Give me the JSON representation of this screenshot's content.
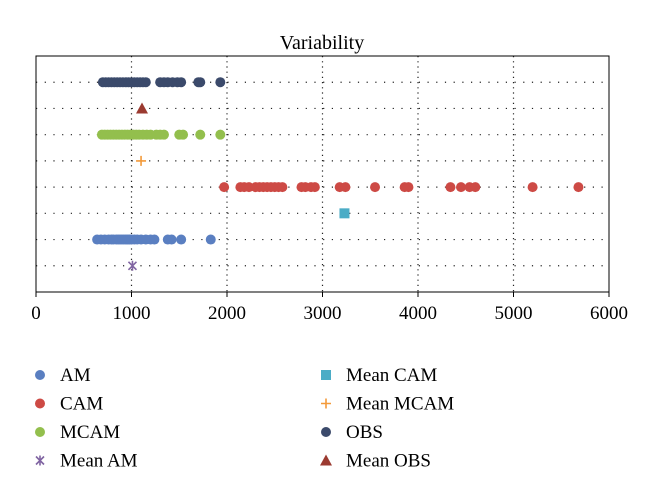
{
  "chart_data": {
    "type": "scatter",
    "title": "Variability",
    "xlabel": "",
    "ylabel": "",
    "xlim": [
      0,
      6000
    ],
    "x_ticks": [
      0,
      1000,
      2000,
      3000,
      4000,
      5000,
      6000
    ],
    "grid": true,
    "legend_position": "bottom",
    "series": [
      {
        "name": "OBS",
        "row": 8,
        "marker": "circle",
        "color": "#3b4a6b",
        "x": [
          700,
          730,
          760,
          790,
          820,
          850,
          880,
          910,
          940,
          970,
          1000,
          1030,
          1060,
          1090,
          1120,
          1150,
          1300,
          1340,
          1380,
          1430,
          1480,
          1520,
          1700,
          1720,
          1930
        ]
      },
      {
        "name": "Mean OBS",
        "row": 7,
        "marker": "triangle",
        "color": "#9b3a30",
        "x": [
          1110
        ]
      },
      {
        "name": "MCAM",
        "row": 6,
        "marker": "circle",
        "color": "#93bf4d",
        "x": [
          690,
          720,
          750,
          780,
          810,
          840,
          870,
          900,
          930,
          960,
          990,
          1020,
          1050,
          1080,
          1120,
          1160,
          1200,
          1260,
          1300,
          1340,
          1500,
          1540,
          1720,
          1930
        ]
      },
      {
        "name": "Mean MCAM",
        "row": 5,
        "marker": "plus",
        "color": "#f39a3a",
        "x": [
          1100
        ]
      },
      {
        "name": "CAM",
        "row": 4,
        "marker": "circle",
        "color": "#cd4a45",
        "x": [
          1970,
          2140,
          2180,
          2230,
          2300,
          2340,
          2380,
          2420,
          2460,
          2500,
          2540,
          2580,
          2780,
          2820,
          2880,
          2920,
          3180,
          3240,
          3550,
          3860,
          3900,
          4340,
          4450,
          4540,
          4600,
          5200,
          5680
        ]
      },
      {
        "name": "Mean CAM",
        "row": 3,
        "marker": "square",
        "color": "#4bacc6",
        "x": [
          3230
        ]
      },
      {
        "name": "AM",
        "row": 2,
        "marker": "circle",
        "color": "#5a7fc1",
        "x": [
          640,
          680,
          720,
          760,
          790,
          810,
          840,
          860,
          880,
          900,
          920,
          940,
          960,
          980,
          1000,
          1030,
          1060,
          1100,
          1150,
          1200,
          1240,
          1380,
          1420,
          1520,
          1830
        ]
      },
      {
        "name": "Mean AM",
        "row": 1,
        "marker": "x",
        "color": "#8064a2",
        "x": [
          1010
        ]
      }
    ],
    "legend": [
      {
        "label": "AM",
        "marker": "circle",
        "color": "#5a7fc1"
      },
      {
        "label": "CAM",
        "marker": "circle",
        "color": "#cd4a45"
      },
      {
        "label": "MCAM",
        "marker": "circle",
        "color": "#93bf4d"
      },
      {
        "label": "Mean AM",
        "marker": "x",
        "color": "#8064a2"
      },
      {
        "label": "Mean CAM",
        "marker": "square",
        "color": "#4bacc6"
      },
      {
        "label": "Mean MCAM",
        "marker": "plus",
        "color": "#f39a3a"
      },
      {
        "label": "OBS",
        "marker": "circle",
        "color": "#3b4a6b"
      },
      {
        "label": "Mean OBS",
        "marker": "triangle",
        "color": "#9b3a30"
      }
    ]
  }
}
